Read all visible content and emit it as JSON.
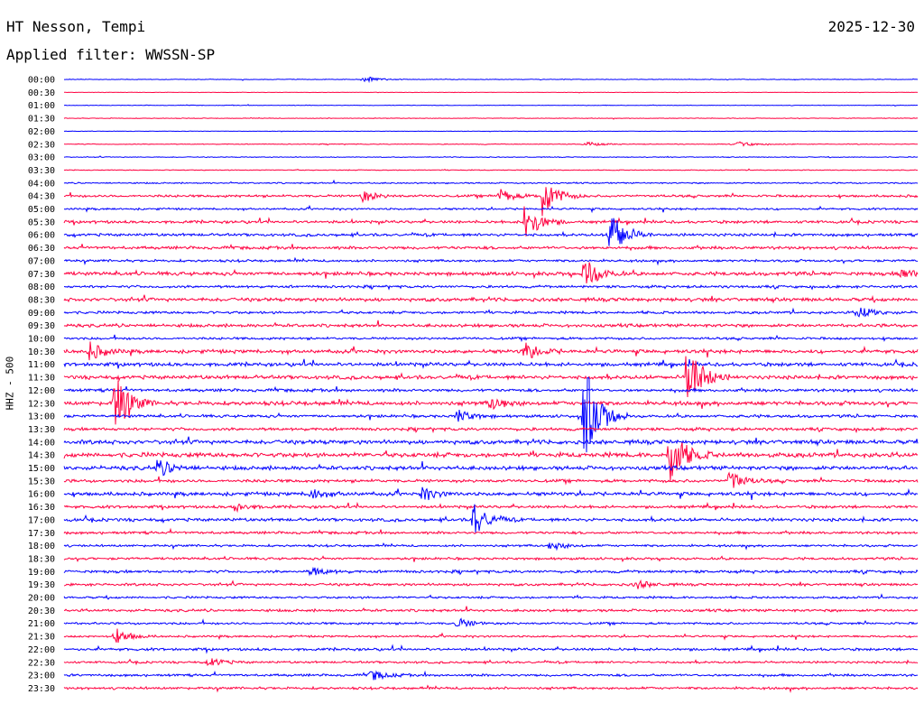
{
  "header": {
    "station": "HT Nesson, Tempi",
    "date": "2025-12-30",
    "filter": "Applied filter: WWSSN-SP"
  },
  "chart_data": {
    "type": "line",
    "title": "HT Nesson, Tempi",
    "ylabel": "HHZ - 500",
    "row_labels": [
      "00:00",
      "00:30",
      "01:00",
      "01:30",
      "02:00",
      "02:30",
      "03:00",
      "03:30",
      "04:00",
      "04:30",
      "05:00",
      "05:30",
      "06:00",
      "06:30",
      "07:00",
      "07:30",
      "08:00",
      "08:30",
      "09:00",
      "09:30",
      "10:00",
      "10:30",
      "11:00",
      "11:30",
      "12:00",
      "12:30",
      "13:00",
      "13:30",
      "14:00",
      "14:30",
      "15:00",
      "15:30",
      "16:00",
      "16:30",
      "17:00",
      "17:30",
      "18:00",
      "18:30",
      "19:00",
      "19:30",
      "20:00",
      "20:30",
      "21:00",
      "21:30",
      "22:00",
      "22:30",
      "23:00",
      "23:30"
    ],
    "colors": [
      "#0000ff",
      "#ff0040"
    ],
    "noise_amplitude": [
      0.3,
      0.2,
      0.3,
      0.3,
      0.2,
      0.4,
      0.4,
      0.4,
      0.7,
      1.2,
      1.0,
      1.4,
      1.4,
      1.5,
      1.2,
      1.8,
      1.3,
      1.8,
      1.3,
      1.6,
      1.2,
      1.8,
      1.8,
      1.9,
      1.5,
      2.0,
      1.4,
      1.5,
      2.1,
      2.3,
      2.0,
      1.5,
      1.8,
      1.4,
      1.6,
      1.3,
      1.1,
      1.2,
      1.4,
      1.3,
      1.1,
      1.3,
      1.1,
      1.0,
      1.3,
      1.1,
      1.2,
      1.2
    ],
    "events": [
      {
        "row": 0,
        "t": 0.35,
        "amp": 4
      },
      {
        "row": 5,
        "t": 0.61,
        "amp": 3
      },
      {
        "row": 5,
        "t": 0.79,
        "amp": 3
      },
      {
        "row": 9,
        "t": 0.35,
        "amp": 6
      },
      {
        "row": 9,
        "t": 0.51,
        "amp": 8
      },
      {
        "row": 9,
        "t": 0.56,
        "amp": 24
      },
      {
        "row": 11,
        "t": 0.54,
        "amp": 22
      },
      {
        "row": 12,
        "t": 0.64,
        "amp": 30
      },
      {
        "row": 15,
        "t": 0.61,
        "amp": 18
      },
      {
        "row": 15,
        "t": 0.98,
        "amp": 6
      },
      {
        "row": 18,
        "t": 0.93,
        "amp": 8
      },
      {
        "row": 21,
        "t": 0.03,
        "amp": 10
      },
      {
        "row": 21,
        "t": 0.54,
        "amp": 10
      },
      {
        "row": 23,
        "t": 0.73,
        "amp": 40
      },
      {
        "row": 25,
        "t": 0.06,
        "amp": 34
      },
      {
        "row": 25,
        "t": 0.5,
        "amp": 8
      },
      {
        "row": 26,
        "t": 0.61,
        "amp": 60
      },
      {
        "row": 26,
        "t": 0.46,
        "amp": 8
      },
      {
        "row": 29,
        "t": 0.71,
        "amp": 36
      },
      {
        "row": 30,
        "t": 0.11,
        "amp": 10
      },
      {
        "row": 31,
        "t": 0.78,
        "amp": 12
      },
      {
        "row": 32,
        "t": 0.29,
        "amp": 6
      },
      {
        "row": 32,
        "t": 0.42,
        "amp": 7
      },
      {
        "row": 33,
        "t": 0.2,
        "amp": 5
      },
      {
        "row": 34,
        "t": 0.48,
        "amp": 18
      },
      {
        "row": 36,
        "t": 0.57,
        "amp": 5
      },
      {
        "row": 38,
        "t": 0.29,
        "amp": 5
      },
      {
        "row": 39,
        "t": 0.67,
        "amp": 5
      },
      {
        "row": 42,
        "t": 0.46,
        "amp": 6
      },
      {
        "row": 43,
        "t": 0.06,
        "amp": 9
      },
      {
        "row": 45,
        "t": 0.17,
        "amp": 5
      },
      {
        "row": 46,
        "t": 0.36,
        "amp": 6
      }
    ]
  }
}
